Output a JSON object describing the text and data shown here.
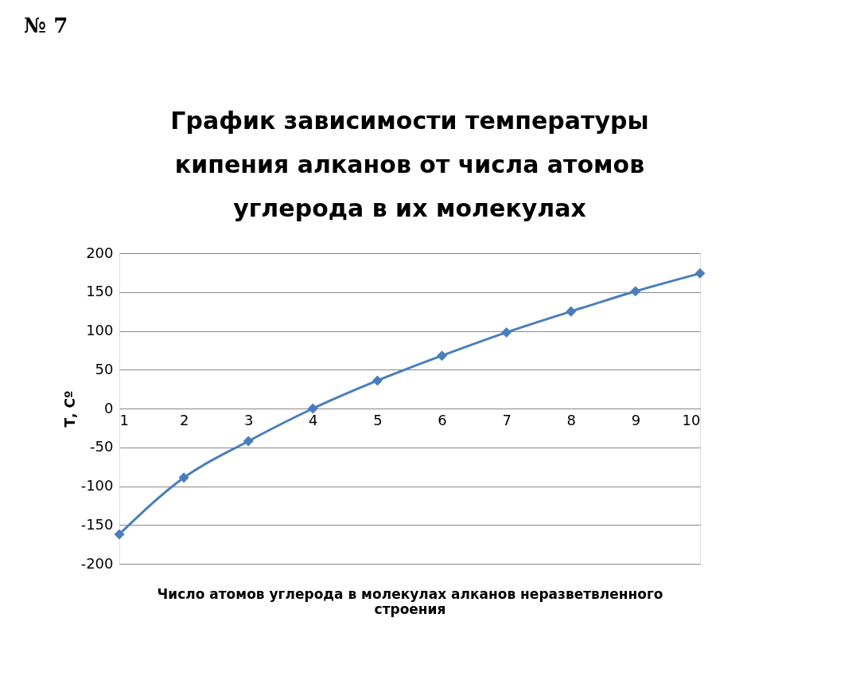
{
  "chart_data": {
    "type": "line",
    "title": "График зависимости температуры кипения алканов от числа атомов углерода в их молекулах",
    "xlabel": "Число атомов углерода в молекулах алканов неразветвленного строения",
    "ylabel": "Т, Сº",
    "annotations": [
      "№ 7"
    ],
    "x": [
      1,
      2,
      3,
      4,
      5,
      6,
      7,
      8,
      9,
      10
    ],
    "series": [
      {
        "color": "#4a7ebb",
        "values": [
          -162,
          -89,
          -42,
          0,
          36,
          68,
          98,
          125,
          151,
          174
        ]
      }
    ],
    "xlim": [
      1,
      10
    ],
    "xticks": [
      1,
      2,
      3,
      4,
      5,
      6,
      7,
      8,
      9,
      10
    ],
    "ylim": [
      -200,
      200
    ],
    "yticks": [
      -200,
      -150,
      -100,
      -50,
      0,
      50,
      100,
      150,
      200
    ],
    "grid": "y",
    "marker": "diamond",
    "line_style": "solid"
  }
}
